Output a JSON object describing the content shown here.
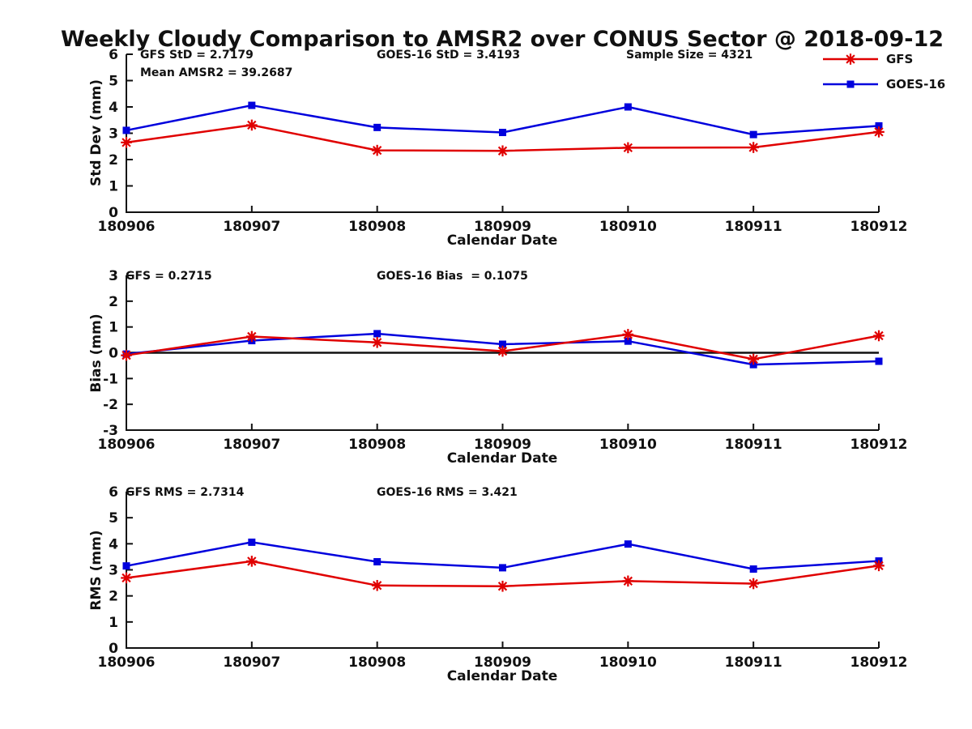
{
  "figure": {
    "title": "Weekly Cloudy Comparison to AMSR2 over CONUS Sector @ 2018-09-12"
  },
  "colors": {
    "gfs_red": "#e00000",
    "goes_blue": "#0000dd",
    "axis": "#111111"
  },
  "legend": {
    "entries": [
      {
        "label": "GFS",
        "color": "#e00000",
        "marker": "asterisk"
      },
      {
        "label": "GOES-16",
        "color": "#0000dd",
        "marker": "square"
      }
    ]
  },
  "chart_data": [
    {
      "type": "line",
      "title": "Std Dev subplot",
      "categories": [
        "180906",
        "180907",
        "180908",
        "180909",
        "180910",
        "180911",
        "180912"
      ],
      "series": [
        {
          "name": "GFS",
          "color": "#e00000",
          "marker": "asterisk",
          "values": [
            2.65,
            3.31,
            2.35,
            2.33,
            2.45,
            2.46,
            3.05
          ]
        },
        {
          "name": "GOES-16",
          "color": "#0000dd",
          "marker": "square",
          "values": [
            3.11,
            4.06,
            3.22,
            3.03,
            4.0,
            2.95,
            3.28
          ]
        }
      ],
      "xlabel": "Calendar Date",
      "ylabel": "Std Dev (mm)",
      "ylim": [
        0,
        6
      ],
      "yticks": [
        0,
        1,
        2,
        3,
        4,
        5,
        6
      ],
      "grid": false,
      "zero_line": false,
      "annotations": [
        {
          "text": "GFS StD = 2.7179"
        },
        {
          "text": "Mean AMSR2 = 39.2687"
        },
        {
          "text": "GOES-16 StD = 3.4193"
        },
        {
          "text": "Sample Size = 4321"
        }
      ]
    },
    {
      "type": "line",
      "title": "Bias subplot",
      "categories": [
        "180906",
        "180907",
        "180908",
        "180909",
        "180910",
        "180911",
        "180912"
      ],
      "series": [
        {
          "name": "GFS",
          "color": "#e00000",
          "marker": "asterisk",
          "values": [
            -0.1,
            0.63,
            0.4,
            0.06,
            0.71,
            -0.25,
            0.66
          ]
        },
        {
          "name": "GOES-16",
          "color": "#0000dd",
          "marker": "square",
          "values": [
            -0.05,
            0.47,
            0.74,
            0.33,
            0.45,
            -0.46,
            -0.33
          ]
        }
      ],
      "xlabel": "Calendar Date",
      "ylabel": "Bias (mm)",
      "ylim": [
        -3,
        3
      ],
      "yticks": [
        -3,
        -2,
        -1,
        0,
        1,
        2,
        3
      ],
      "grid": false,
      "zero_line": true,
      "annotations": [
        {
          "text": "GFS = 0.2715"
        },
        {
          "text": "GOES-16 Bias  = 0.1075"
        }
      ]
    },
    {
      "type": "line",
      "title": "RMS subplot",
      "categories": [
        "180906",
        "180907",
        "180908",
        "180909",
        "180910",
        "180911",
        "180912"
      ],
      "series": [
        {
          "name": "GFS",
          "color": "#e00000",
          "marker": "asterisk",
          "values": [
            2.69,
            3.33,
            2.4,
            2.37,
            2.57,
            2.47,
            3.16
          ]
        },
        {
          "name": "GOES-16",
          "color": "#0000dd",
          "marker": "square",
          "values": [
            3.15,
            4.06,
            3.31,
            3.08,
            3.99,
            3.03,
            3.34
          ]
        }
      ],
      "xlabel": "Calendar Date",
      "ylabel": "RMS (mm)",
      "ylim": [
        0,
        6
      ],
      "yticks": [
        0,
        1,
        2,
        3,
        4,
        5,
        6
      ],
      "grid": false,
      "zero_line": false,
      "annotations": [
        {
          "text": "GFS RMS = 2.7314"
        },
        {
          "text": "GOES-16 RMS = 3.421"
        }
      ]
    }
  ]
}
